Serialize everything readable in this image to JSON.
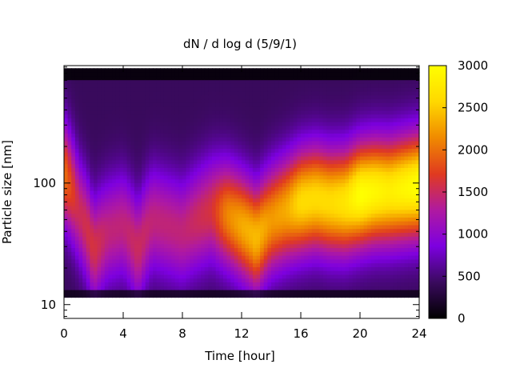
{
  "chart_data": {
    "type": "heatmap",
    "title": "dN / d log d (5/9/1)",
    "xlabel": "Time [hour]",
    "ylabel": "Particle size [nm]",
    "xlim": [
      0,
      24
    ],
    "ylim": [
      7.7,
      925
    ],
    "yscale": "log",
    "x_ticks": [
      "0",
      "4",
      "8",
      "12",
      "16",
      "20",
      "24"
    ],
    "x_tick_values": [
      0,
      4,
      8,
      12,
      16,
      20,
      24
    ],
    "y_ticks": [
      "10",
      "100"
    ],
    "y_tick_values": [
      10,
      100
    ],
    "colorbar": {
      "min": 0,
      "max": 3000,
      "ticks": [
        "0",
        "500",
        "1000",
        "1500",
        "2000",
        "2500",
        "3000"
      ],
      "tick_values": [
        0,
        500,
        1000,
        1500,
        2000,
        2500,
        3000
      ],
      "palette": [
        "#000000",
        "#3a0a5e",
        "#7d00e0",
        "#b01aa0",
        "#e03a20",
        "#f08a00",
        "#ffd800",
        "#ffff00"
      ]
    },
    "size_range_nm": [
      11.5,
      880
    ],
    "mode": {
      "time_h": [
        0,
        1,
        2,
        3,
        4,
        5,
        6,
        7,
        8,
        9,
        10,
        11,
        12,
        13,
        14,
        15,
        16,
        17,
        18,
        19,
        20,
        21,
        22,
        23,
        24
      ],
      "diameter_nm": [
        120,
        60,
        28,
        40,
        45,
        28,
        50,
        45,
        40,
        50,
        60,
        55,
        45,
        35,
        50,
        60,
        70,
        75,
        70,
        70,
        80,
        85,
        85,
        90,
        95
      ],
      "peak_count": [
        1600,
        1100,
        1200,
        1000,
        1000,
        1100,
        1000,
        1000,
        1000,
        1100,
        1200,
        1700,
        1900,
        2000,
        1800,
        1900,
        2200,
        2200,
        2200,
        2300,
        2600,
        2500,
        2400,
        2500,
        2600
      ]
    }
  }
}
